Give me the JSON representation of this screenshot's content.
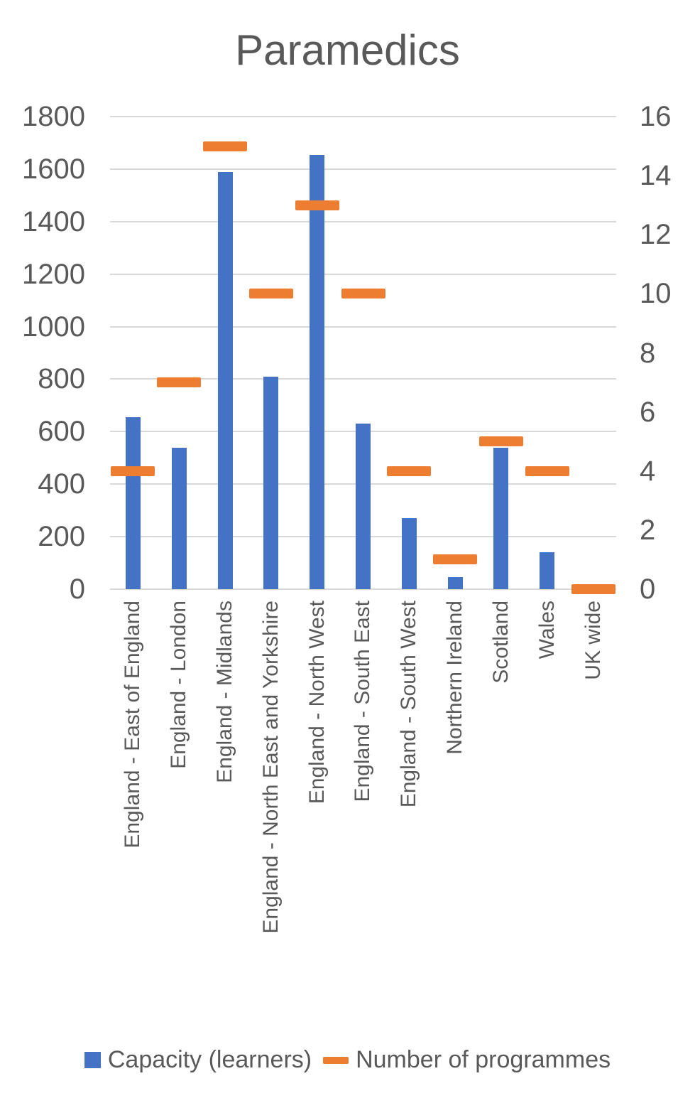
{
  "chart_data": {
    "type": "bar",
    "title": "Paramedics",
    "categories": [
      "England - East of England",
      "England - London",
      "England - Midlands",
      "England - North East and Yorkshire",
      "England - North West",
      "England - South East",
      "England - South West",
      "Northern Ireland",
      "Scotland",
      "Wales",
      "UK wide"
    ],
    "series": [
      {
        "name": "Capacity (learners)",
        "type": "column",
        "axis": "left",
        "color": "#4472C4",
        "values": [
          655,
          540,
          1590,
          810,
          1655,
          630,
          270,
          45,
          540,
          140,
          0
        ]
      },
      {
        "name": "Number of programmes",
        "type": "dash",
        "axis": "right",
        "color": "#ED7D31",
        "values": [
          4,
          7,
          15,
          10,
          13,
          10,
          4,
          1,
          5,
          4,
          0
        ]
      }
    ],
    "left_axis": {
      "min": 0,
      "max": 1800,
      "step": 200,
      "ticks": [
        1800,
        1600,
        1400,
        1200,
        1000,
        800,
        600,
        400,
        200,
        0
      ]
    },
    "right_axis": {
      "min": 0,
      "max": 16,
      "step": 2,
      "ticks": [
        16,
        14,
        12,
        10,
        8,
        6,
        4,
        2,
        0
      ]
    },
    "grid": true,
    "legend_position": "bottom",
    "colors": {
      "text": "#595959",
      "gridline": "#D9D9D9",
      "background": "#FFFFFF"
    }
  }
}
